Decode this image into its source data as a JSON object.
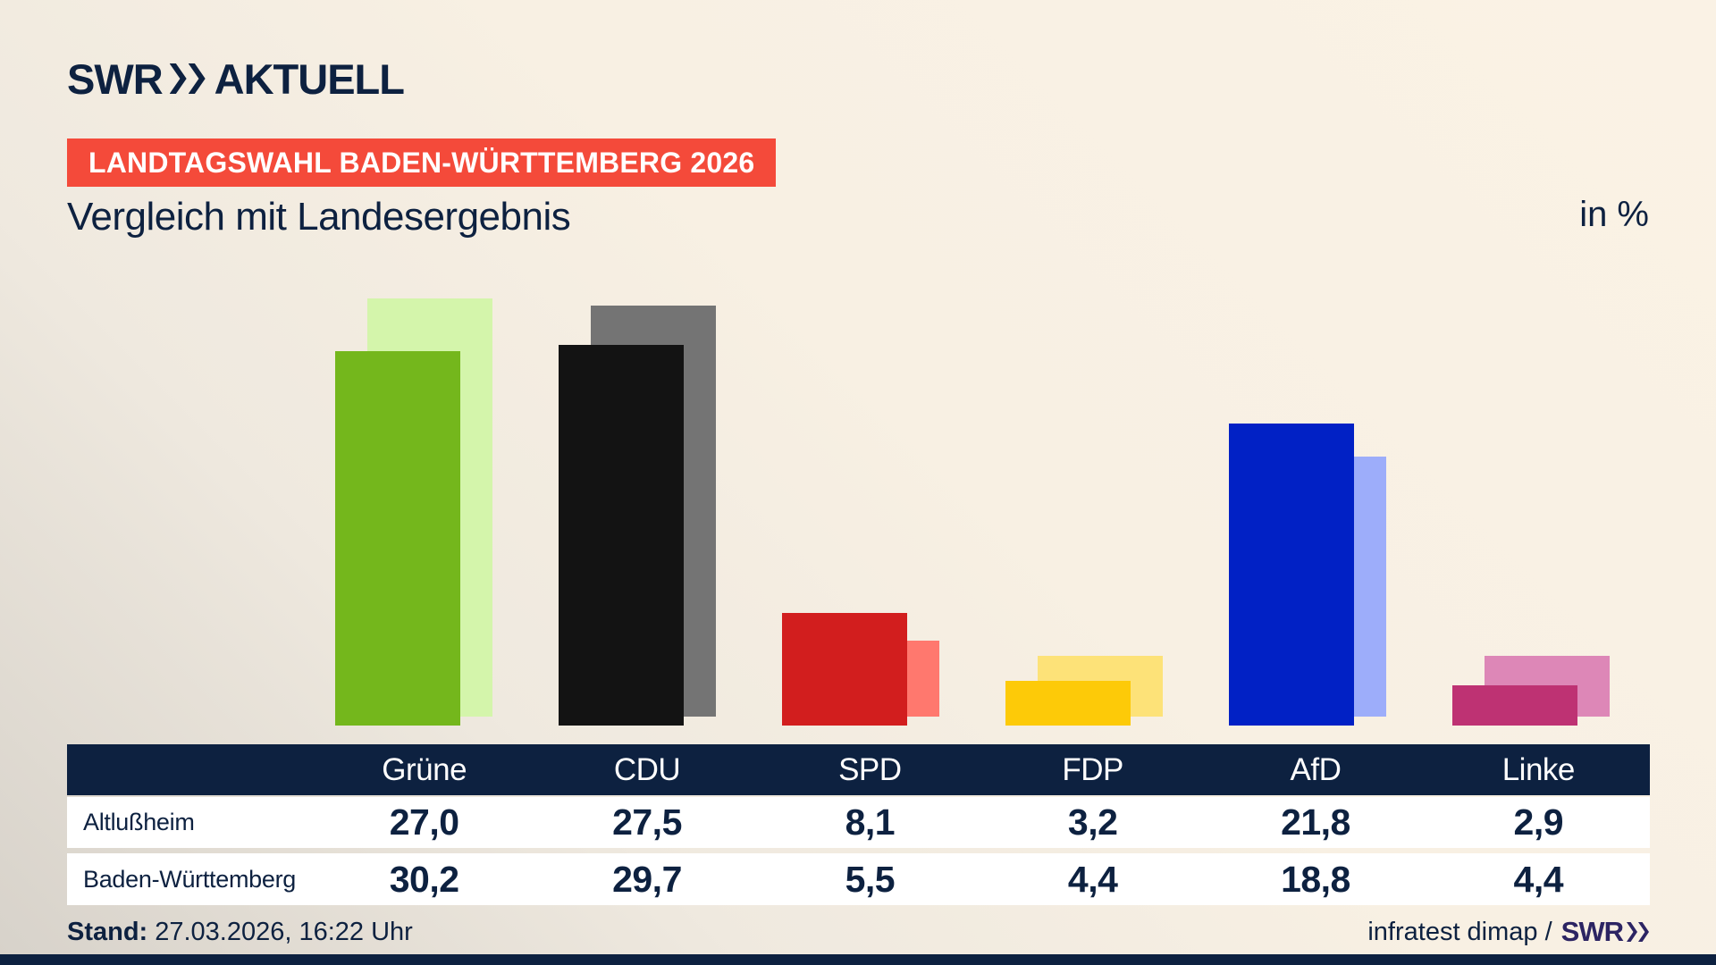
{
  "meta": {
    "brand": "SWR",
    "brand_suffix": "AKTUELL",
    "banner": "LANDTAGSWAHL BADEN-WÜRTTEMBERG 2026",
    "title": "Vergleich mit Landesergebnis",
    "unit_label": "in %",
    "stand_label": "Stand:",
    "stand_value": "27.03.2026, 16:22 Uhr",
    "source_label": "infratest dimap /",
    "source_brand": "SWR"
  },
  "chart_data": {
    "type": "bar",
    "title": "Vergleich mit Landesergebnis",
    "unit": "%",
    "categories": [
      "Grüne",
      "CDU",
      "SPD",
      "FDP",
      "AfD",
      "Linke"
    ],
    "series": [
      {
        "name": "Altlußheim",
        "values": [
          27.0,
          27.5,
          8.1,
          3.2,
          21.8,
          2.9
        ]
      },
      {
        "name": "Baden-Württemberg",
        "values": [
          30.2,
          29.7,
          5.5,
          4.4,
          18.8,
          4.4
        ]
      }
    ],
    "colors": {
      "front": [
        "#74b71c",
        "#131313",
        "#d21e1e",
        "#fdca08",
        "#0121c5",
        "#be3273"
      ],
      "back": [
        "#d4f5ab",
        "#747474",
        "#ff786e",
        "#fde278",
        "#9dadfa",
        "#dd87b7"
      ]
    },
    "accent_navy": "#0d2140",
    "banner_red": "#f44a3a",
    "ylim": [
      0,
      32
    ],
    "grid": false,
    "legend": "table-rows",
    "value_format": "de-comma-1-decimal"
  }
}
